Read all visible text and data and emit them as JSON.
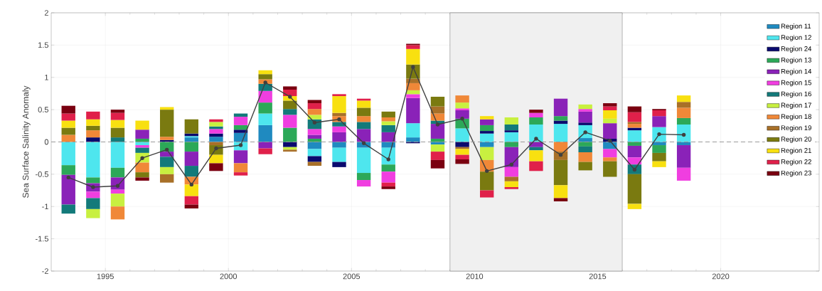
{
  "chart_data": {
    "type": "bar",
    "stacked": true,
    "ylabel": "Sea Surface Salinity Anomaly",
    "x": [
      1993.5,
      1994.5,
      1995.5,
      1996.5,
      1997.5,
      1998.5,
      1999.5,
      2000.5,
      2001.5,
      2002.5,
      2003.5,
      2004.5,
      2005.5,
      2006.5,
      2007.5,
      2008.5,
      2009.5,
      2010.5,
      2011.5,
      2012.5,
      2013.5,
      2014.5,
      2015.5,
      2016.5,
      2017.5,
      2018.5
    ],
    "xlim": [
      1992.8,
      2024
    ],
    "xticks": [
      1995,
      2000,
      2005,
      2010,
      2015,
      2020
    ],
    "ylim": [
      -2,
      2
    ],
    "yticks": [
      -2,
      -1.5,
      -1,
      -0.5,
      0,
      0.5,
      1,
      1.5,
      2
    ],
    "grid": true,
    "legend": "top right",
    "marker": "circle",
    "ref_lines": [
      {
        "axis": "y",
        "value": 0,
        "color": "#9a9a9a",
        "line_style": "dashed"
      }
    ],
    "bands": [
      {
        "axis": "x",
        "from": 2009,
        "to": 2016,
        "color": "#f0f0f0"
      }
    ],
    "series": [
      {
        "name": "Region 11",
        "color": "#1f8ac0",
        "values": [
          null,
          null,
          null,
          null,
          null,
          0.07,
          0.08,
          0.14,
          0.26,
          null,
          -0.11,
          -0.09,
          -0.09,
          -0.09,
          0.07,
          -0.04,
          null,
          -0.08,
          null,
          null,
          null,
          0.06,
          -0.11,
          null,
          -0.05,
          -0.05
        ]
      },
      {
        "name": "Region 12",
        "color": "#4ee6ee",
        "values": [
          -0.36,
          -0.55,
          -0.4,
          -0.05,
          null,
          0.02,
          null,
          -0.13,
          0.18,
          null,
          -0.11,
          -0.22,
          -0.39,
          -0.26,
          0.22,
          null,
          0.21,
          0.13,
          0.15,
          0.27,
          0.28,
          0.2,
          null,
          0.18,
          0.23,
          0.27
        ]
      },
      {
        "name": "Region 24",
        "color": "#0a0a6e",
        "values": [
          null,
          0.07,
          null,
          null,
          0.03,
          0.04,
          0.05,
          0.05,
          null,
          -0.08,
          -0.09,
          -0.08,
          null,
          null,
          -0.02,
          null,
          -0.08,
          0.04,
          0.03,
          null,
          0.05,
          0.04,
          0.05,
          0.04,
          null,
          null
        ]
      },
      {
        "name": "Region 13",
        "color": "#2ca858",
        "values": [
          -0.15,
          -0.09,
          -0.15,
          0.05,
          -0.15,
          -0.15,
          null,
          0.07,
          0.17,
          0.22,
          0.05,
          null,
          -0.11,
          -0.11,
          null,
          0.05,
          0.15,
          0.09,
          -0.08,
          0.11,
          0.07,
          -0.07,
          null,
          -0.06,
          -0.12,
          0.1
        ]
      },
      {
        "name": "Region 14",
        "color": "#8a22b8",
        "values": [
          -0.46,
          -0.13,
          -0.19,
          0.14,
          -0.08,
          -0.22,
          null,
          -0.2,
          -0.1,
          null,
          0.06,
          0.15,
          0.2,
          0.15,
          0.39,
          0.23,
          0.13,
          0.09,
          -0.31,
          -0.08,
          0.27,
          0.17,
          0.24,
          -0.18,
          0.17,
          -0.35
        ]
      },
      {
        "name": "Region 15",
        "color": "#f03ee0",
        "values": [
          null,
          -0.1,
          -0.06,
          -0.04,
          null,
          null,
          0.07,
          0.13,
          0.18,
          0.2,
          0.09,
          0.09,
          -0.1,
          -0.17,
          0.06,
          null,
          0.03,
          null,
          -0.15,
          0.07,
          null,
          0.04,
          -0.13,
          -0.11,
          null,
          -0.2
        ]
      },
      {
        "name": "Region 16",
        "color": "#137a7a",
        "values": [
          -0.14,
          -0.17,
          0.07,
          -0.08,
          -0.16,
          -0.17,
          0.04,
          0.05,
          0.11,
          0.09,
          0.15,
          0.07,
          0.11,
          0.11,
          null,
          0.05,
          null,
          null,
          0.09,
          -0.05,
          null,
          -0.09,
          null,
          -0.15,
          null,
          null
        ]
      },
      {
        "name": "Region 17",
        "color": "#c8f040",
        "values": [
          null,
          -0.14,
          -0.2,
          -0.15,
          -0.11,
          null,
          0.07,
          null,
          null,
          -0.04,
          0.07,
          null,
          null,
          0.06,
          0.06,
          -0.11,
          0.09,
          -0.2,
          0.11,
          null,
          null,
          0.07,
          0.07,
          null,
          null,
          null
        ]
      },
      {
        "name": "Region 18",
        "color": "#f08838",
        "values": [
          0.11,
          0.11,
          -0.2,
          -0.15,
          0.05,
          -0.12,
          null,
          -0.14,
          0.07,
          null,
          0.09,
          0.09,
          0.09,
          0.06,
          0.11,
          0.11,
          0.11,
          -0.18,
          null,
          null,
          -0.15,
          -0.15,
          -0.06,
          0.06,
          null,
          0.16
        ]
      },
      {
        "name": "Region 19",
        "color": "#a87028",
        "values": [
          null,
          null,
          null,
          null,
          -0.13,
          null,
          -0.05,
          null,
          null,
          -0.03,
          -0.06,
          0.05,
          null,
          null,
          0.07,
          0.11,
          -0.03,
          null,
          -0.07,
          null,
          -0.13,
          null,
          null,
          0.03,
          null,
          0.09
        ]
      },
      {
        "name": "Region 20",
        "color": "#7a7a10",
        "values": [
          0.11,
          0.07,
          0.15,
          -0.08,
          0.42,
          0.22,
          -0.15,
          null,
          0.08,
          0.13,
          null,
          null,
          0.13,
          0.09,
          0.22,
          0.15,
          null,
          -0.29,
          null,
          null,
          -0.39,
          -0.13,
          -0.24,
          -0.46,
          -0.13,
          null
        ]
      },
      {
        "name": "Region 21",
        "color": "#f8e010",
        "values": [
          0.11,
          0.1,
          0.12,
          0.14,
          0.04,
          -0.18,
          -0.13,
          null,
          0.06,
          0.07,
          null,
          0.26,
          0.11,
          null,
          0.24,
          null,
          -0.09,
          0.05,
          -0.09,
          -0.17,
          -0.2,
          null,
          0.13,
          -0.08,
          -0.09,
          0.1
        ]
      },
      {
        "name": "Region 22",
        "color": "#e0204a",
        "values": [
          0.11,
          0.12,
          0.11,
          null,
          null,
          -0.13,
          0.04,
          -0.05,
          -0.09,
          0.1,
          0.09,
          0.03,
          0.03,
          -0.06,
          0.06,
          -0.13,
          -0.07,
          -0.11,
          -0.03,
          -0.15,
          null,
          null,
          0.06,
          0.15,
          0.09,
          null
        ]
      },
      {
        "name": "Region 23",
        "color": "#7a0010",
        "values": [
          0.12,
          null,
          0.05,
          -0.05,
          null,
          -0.06,
          -0.12,
          null,
          null,
          0.05,
          0.05,
          null,
          null,
          -0.04,
          0.02,
          -0.13,
          -0.07,
          null,
          null,
          0.05,
          -0.05,
          null,
          0.05,
          0.09,
          0.02,
          null
        ]
      },
      {
        "type": "line",
        "color": "#404040",
        "values": [
          -0.55,
          -0.7,
          -0.68,
          -0.25,
          -0.12,
          -0.66,
          -0.1,
          -0.05,
          0.92,
          0.7,
          0.3,
          0.35,
          -0.02,
          -0.27,
          1.16,
          0.27,
          0.36,
          -0.45,
          -0.35,
          0.05,
          -0.2,
          0.15,
          0.02,
          -0.43,
          0.12,
          0.11
        ]
      }
    ]
  }
}
